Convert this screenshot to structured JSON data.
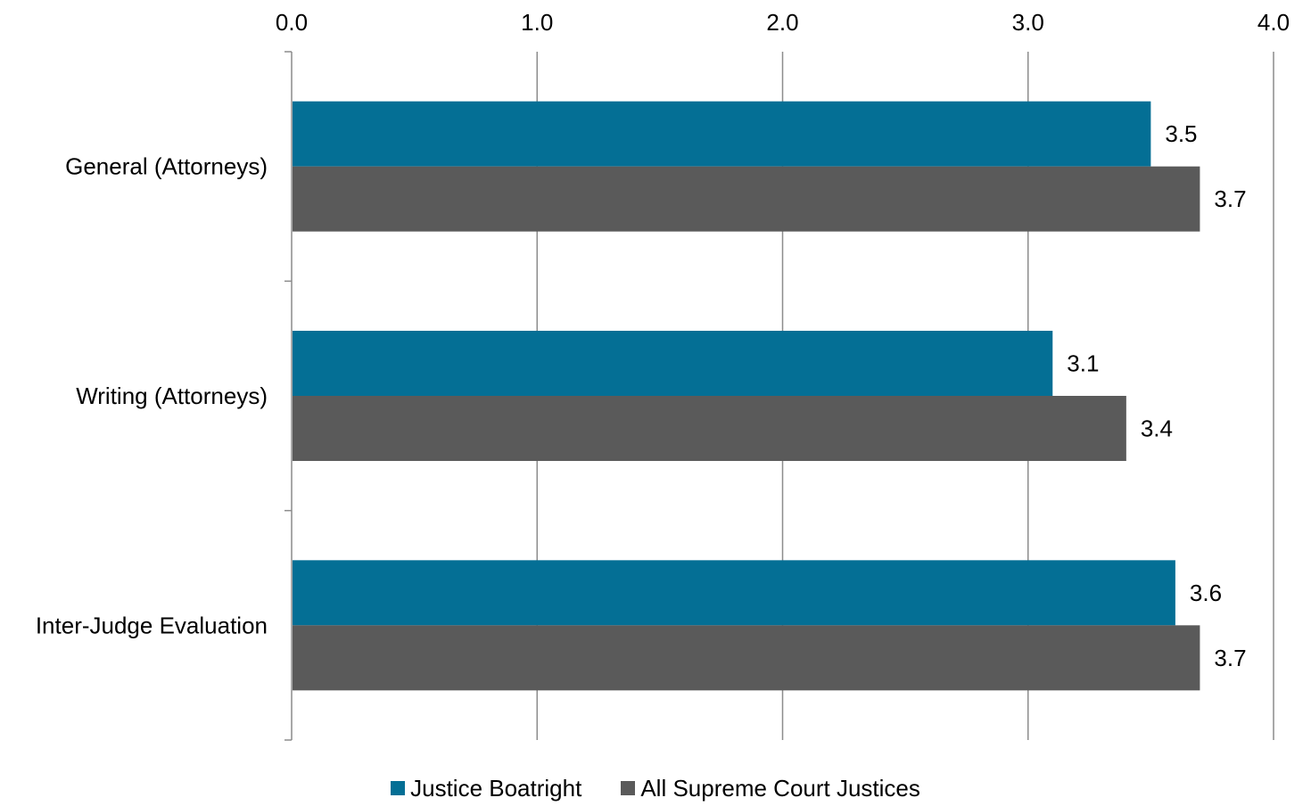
{
  "chart_data": {
    "type": "bar",
    "orientation": "horizontal",
    "title": "",
    "xlabel": "",
    "ylabel": "",
    "xlim": [
      0,
      4
    ],
    "x_ticks": [
      "0.0",
      "1.0",
      "2.0",
      "3.0",
      "4.0"
    ],
    "x_axis_position": "top",
    "grid": true,
    "legend_position": "bottom",
    "categories": [
      "General (Attorneys)",
      "Writing (Attorneys)",
      "Inter-Judge Evaluation"
    ],
    "series": [
      {
        "name": "Justice Boatright",
        "color": "#046f95",
        "values": [
          3.5,
          3.1,
          3.6
        ],
        "labels": [
          "3.5",
          "3.1",
          "3.6"
        ]
      },
      {
        "name": "All Supreme Court Justices",
        "color": "#5a5a5a",
        "values": [
          3.7,
          3.4,
          3.7
        ],
        "labels": [
          "3.7",
          "3.4",
          "3.7"
        ]
      }
    ]
  }
}
